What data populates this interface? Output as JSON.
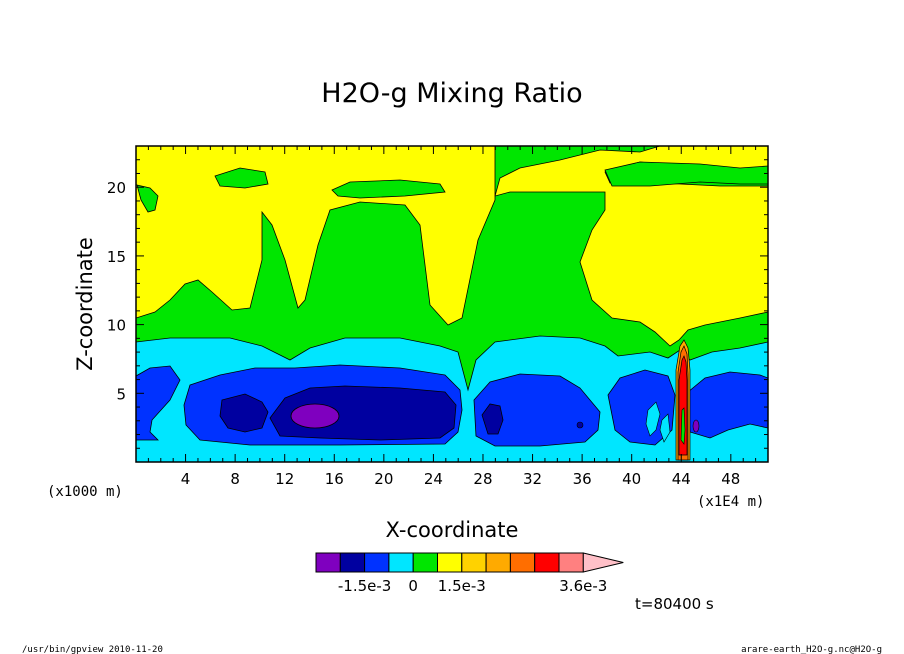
{
  "chart_data": {
    "type": "heatmap",
    "title": "H2O-g Mixing Ratio",
    "xlabel": "X-coordinate",
    "ylabel": "Z-coordinate",
    "x_unit_left": "(x1000 m)",
    "x_unit_right": "(x1E4 m)",
    "x_ticks": [
      "4",
      "8",
      "12",
      "16",
      "20",
      "24",
      "28",
      "32",
      "36",
      "40",
      "44",
      "48"
    ],
    "y_ticks": [
      "5",
      "10",
      "15",
      "20"
    ],
    "xlim": [
      0,
      51
    ],
    "ylim": [
      0,
      23
    ],
    "time_label": "t=80400 s",
    "colorbar": {
      "labels": [
        "-1.5e-3",
        "0",
        "1.5e-3",
        "3.6e-3"
      ],
      "colors": [
        "#7f00bf",
        "#0000a0",
        "#0032ff",
        "#00e6ff",
        "#00e600",
        "#ffff00",
        "#ffd200",
        "#ffaa00",
        "#ff6e00",
        "#ff0000",
        "#ff8080",
        "#ffc0c8"
      ]
    }
  },
  "footer": {
    "left": "/usr/bin/gpview  2010-11-20",
    "right": "arare-earth_H2O-g.nc@H2O-g"
  }
}
